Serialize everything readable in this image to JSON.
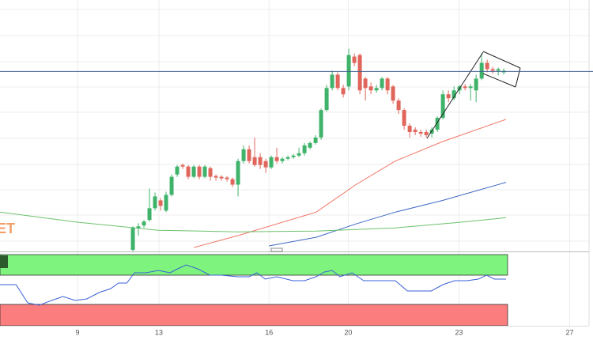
{
  "chart_data": {
    "type": "candlestick",
    "watermark": "ET",
    "up_color": "#40b36b",
    "down_color": "#e0665c",
    "xlim": [
      -24,
      82.4
    ],
    "ylim": [
      0,
      320
    ],
    "xticks": [
      {
        "value": -10,
        "label": "9"
      },
      {
        "value": 4.7,
        "label": "13"
      },
      {
        "value": 24.6,
        "label": "16"
      },
      {
        "value": 38.9,
        "label": "20"
      },
      {
        "value": 58.9,
        "label": "23"
      },
      {
        "value": 78.9,
        "label": "27"
      }
    ],
    "price_line": 229,
    "price_line_color": "#3f5f8f",
    "open": [
      2,
      30,
      33,
      40,
      55,
      65,
      52,
      72,
      98,
      110,
      108,
      95,
      108,
      95,
      106,
      96,
      95,
      94,
      92,
      85,
      115,
      130,
      120,
      120,
      115,
      107,
      120,
      115,
      118,
      120,
      122,
      125,
      132,
      138,
      145,
      180,
      208,
      225,
      208,
      210,
      248,
      250,
      220,
      210,
      205,
      208,
      220,
      210,
      192,
      180,
      160,
      155,
      152,
      152,
      150,
      155,
      170,
      200,
      195,
      205,
      210,
      208,
      205,
      220,
      240,
      232,
      230,
      228
    ],
    "high": [
      32,
      36,
      40,
      80,
      75,
      68,
      76,
      98,
      110,
      112,
      110,
      110,
      110,
      110,
      108,
      98,
      97,
      96,
      94,
      118,
      135,
      135,
      145,
      125,
      118,
      122,
      132,
      120,
      122,
      124,
      132,
      138,
      140,
      148,
      182,
      212,
      230,
      228,
      212,
      258,
      252,
      252,
      222,
      215,
      212,
      222,
      222,
      212,
      195,
      182,
      163,
      158,
      155,
      155,
      158,
      172,
      205,
      205,
      210,
      212,
      213,
      213,
      225,
      252,
      244,
      235,
      234,
      233
    ],
    "low": [
      0,
      20,
      30,
      38,
      52,
      52,
      50,
      70,
      95,
      105,
      92,
      93,
      92,
      93,
      90,
      90,
      90,
      89,
      82,
      70,
      112,
      112,
      108,
      105,
      100,
      105,
      112,
      112,
      116,
      118,
      120,
      122,
      130,
      136,
      142,
      178,
      205,
      205,
      196,
      205,
      236,
      200,
      192,
      200,
      202,
      205,
      200,
      188,
      175,
      155,
      145,
      148,
      146,
      145,
      145,
      152,
      168,
      190,
      192,
      200,
      205,
      192,
      190,
      218,
      228,
      226,
      224,
      225
    ],
    "close": [
      30,
      32,
      38,
      55,
      70,
      58,
      72,
      95,
      108,
      108,
      95,
      108,
      95,
      108,
      95,
      94,
      93,
      92,
      85,
      115,
      130,
      115,
      110,
      110,
      107,
      120,
      115,
      118,
      120,
      122,
      125,
      135,
      138,
      145,
      180,
      208,
      225,
      208,
      200,
      250,
      240,
      205,
      208,
      205,
      208,
      220,
      205,
      192,
      180,
      160,
      152,
      152,
      150,
      148,
      155,
      170,
      200,
      195,
      205,
      210,
      208,
      210,
      220,
      240,
      232,
      230,
      232,
      230
    ],
    "moving_averages": [
      {
        "color": "#f07565",
        "x": [
          11,
          18.9,
          33.1,
          40.3,
          47.4,
          56,
          67.4
        ],
        "values": [
          5,
          20,
          50,
          85,
          115,
          140,
          168
        ]
      },
      {
        "color": "#3d67c4",
        "x": [
          24.6,
          33.1,
          40.3,
          47.4,
          56,
          67.4
        ],
        "values": [
          7,
          18,
          35,
          50,
          65,
          88
        ]
      },
      {
        "color": "#6cc26c",
        "x": [
          -24,
          -9.7,
          4.6,
          18.9,
          33.1,
          47.4,
          58.9,
          67.4
        ],
        "values": [
          50,
          37,
          27,
          25,
          26,
          30,
          37,
          43
        ]
      }
    ],
    "indicator": {
      "color": "#3a62d6",
      "ylim": [
        0,
        92
      ],
      "x": [
        -24,
        -21.1,
        -19,
        -16.9,
        -14.7,
        -12.6,
        -10.4,
        -8.3,
        -6.1,
        -4,
        -2.6,
        -1.1,
        0.3,
        2.4,
        4.6,
        6.7,
        8.1,
        9.6,
        11.7,
        13.9,
        16,
        18.9,
        21,
        22.4,
        23.9,
        26,
        28.9,
        31,
        33.1,
        34.6,
        36,
        37.4,
        39.6,
        41.7,
        44.6,
        47.4,
        49.6,
        51.7,
        53.9,
        56,
        58.1,
        60.3,
        62.4,
        63.9,
        65.3,
        67.4
      ],
      "values": [
        52,
        52,
        29,
        26,
        32,
        37,
        32,
        34,
        42,
        47,
        54,
        54,
        67,
        67,
        70,
        67,
        72,
        77,
        72,
        64,
        64,
        62,
        62,
        67,
        59,
        62,
        57,
        57,
        62,
        68,
        70,
        62,
        67,
        57,
        57,
        57,
        44,
        44,
        44,
        52,
        57,
        57,
        59,
        64,
        59,
        59
      ]
    }
  }
}
